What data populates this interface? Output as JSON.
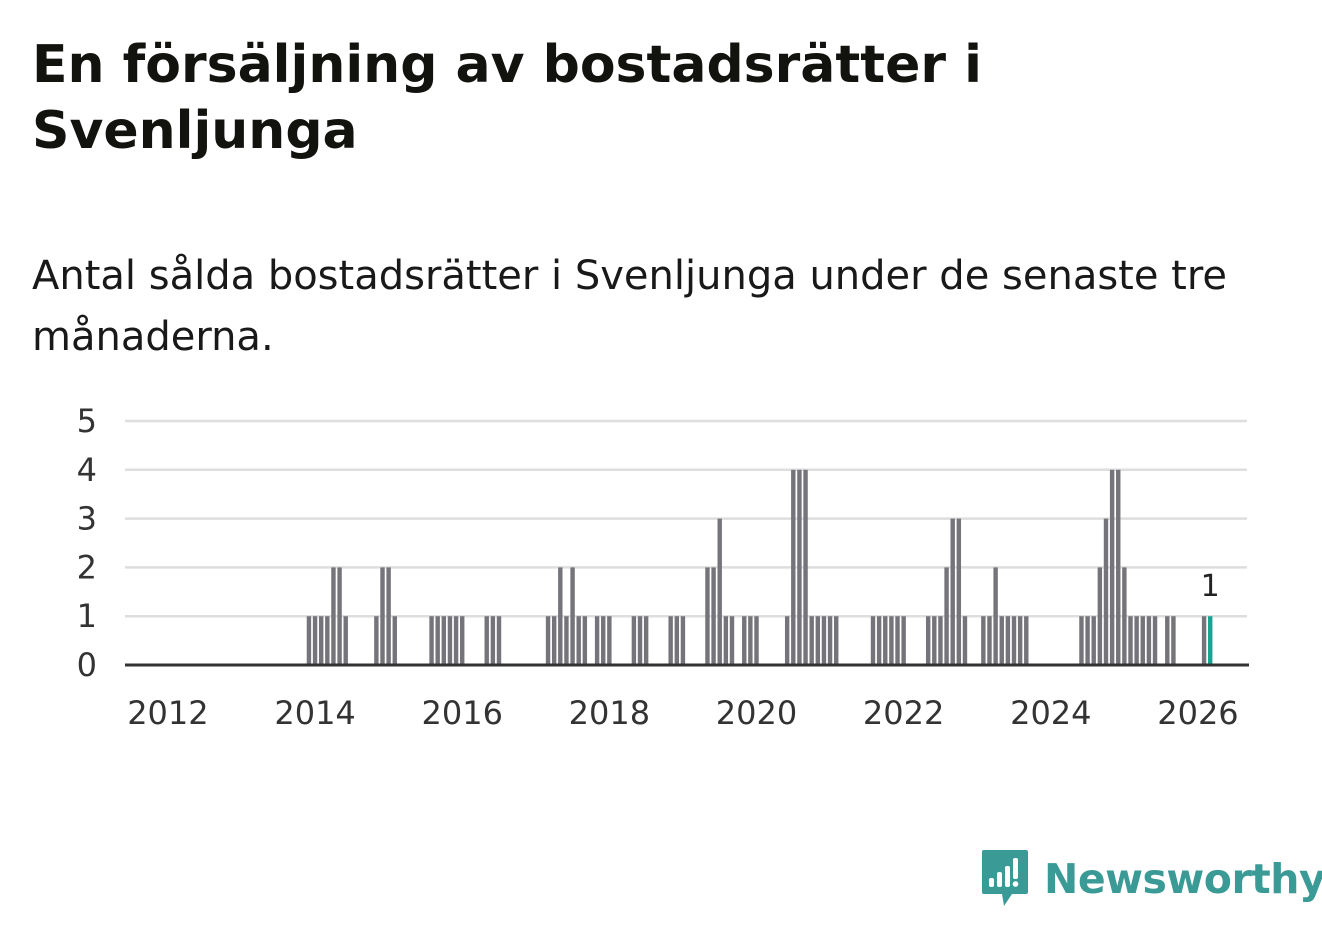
{
  "header": {
    "title": "En försäljning av bostadsrätter i Svenljunga",
    "subtitle": "Antal sålda bostadsrätter i Svenljunga under de senaste tre månaderna."
  },
  "brand": {
    "name": "Newsworthy",
    "color": "#3a9a96",
    "icon": "newsworthy-logo-icon"
  },
  "chart_data": {
    "type": "bar",
    "x_axis": {
      "type": "date",
      "range": [
        "2011-06",
        "2026-09"
      ],
      "ticks": [
        "2012",
        "2014",
        "2016",
        "2018",
        "2020",
        "2022",
        "2024",
        "2026"
      ]
    },
    "y_axis": {
      "range": [
        0,
        5
      ],
      "ticks": [
        "0",
        "1",
        "2",
        "3",
        "4",
        "5"
      ]
    },
    "grid": true,
    "bar_color": "#75747a",
    "highlight_color": "#1aa391",
    "highlight_label": "1",
    "series": [
      {
        "values": [
          [
            "2013-12",
            1
          ],
          [
            "2014-01",
            1
          ],
          [
            "2014-02",
            1
          ],
          [
            "2014-03",
            1
          ],
          [
            "2014-04",
            2
          ],
          [
            "2014-05",
            2
          ],
          [
            "2014-06",
            1
          ],
          [
            "2014-11",
            1
          ],
          [
            "2014-12",
            2
          ],
          [
            "2015-01",
            2
          ],
          [
            "2015-02",
            1
          ],
          [
            "2015-08",
            1
          ],
          [
            "2015-09",
            1
          ],
          [
            "2015-10",
            1
          ],
          [
            "2015-11",
            1
          ],
          [
            "2015-12",
            1
          ],
          [
            "2016-01",
            1
          ],
          [
            "2016-05",
            1
          ],
          [
            "2016-06",
            1
          ],
          [
            "2016-07",
            1
          ],
          [
            "2017-03",
            1
          ],
          [
            "2017-04",
            1
          ],
          [
            "2017-05",
            2
          ],
          [
            "2017-06",
            1
          ],
          [
            "2017-07",
            2
          ],
          [
            "2017-08",
            1
          ],
          [
            "2017-09",
            1
          ],
          [
            "2017-11",
            1
          ],
          [
            "2017-12",
            1
          ],
          [
            "2018-01",
            1
          ],
          [
            "2018-05",
            1
          ],
          [
            "2018-06",
            1
          ],
          [
            "2018-07",
            1
          ],
          [
            "2018-11",
            1
          ],
          [
            "2018-12",
            1
          ],
          [
            "2019-01",
            1
          ],
          [
            "2019-05",
            2
          ],
          [
            "2019-06",
            2
          ],
          [
            "2019-07",
            3
          ],
          [
            "2019-08",
            1
          ],
          [
            "2019-09",
            1
          ],
          [
            "2019-11",
            1
          ],
          [
            "2019-12",
            1
          ],
          [
            "2020-01",
            1
          ],
          [
            "2020-06",
            1
          ],
          [
            "2020-07",
            4
          ],
          [
            "2020-08",
            4
          ],
          [
            "2020-09",
            4
          ],
          [
            "2020-10",
            1
          ],
          [
            "2020-11",
            1
          ],
          [
            "2020-12",
            1
          ],
          [
            "2021-01",
            1
          ],
          [
            "2021-02",
            1
          ],
          [
            "2021-08",
            1
          ],
          [
            "2021-09",
            1
          ],
          [
            "2021-10",
            1
          ],
          [
            "2021-11",
            1
          ],
          [
            "2021-12",
            1
          ],
          [
            "2022-01",
            1
          ],
          [
            "2022-05",
            1
          ],
          [
            "2022-06",
            1
          ],
          [
            "2022-07",
            1
          ],
          [
            "2022-08",
            2
          ],
          [
            "2022-09",
            3
          ],
          [
            "2022-10",
            3
          ],
          [
            "2022-11",
            1
          ],
          [
            "2023-02",
            1
          ],
          [
            "2023-03",
            1
          ],
          [
            "2023-04",
            2
          ],
          [
            "2023-05",
            1
          ],
          [
            "2023-06",
            1
          ],
          [
            "2023-07",
            1
          ],
          [
            "2023-08",
            1
          ],
          [
            "2023-09",
            1
          ],
          [
            "2024-06",
            1
          ],
          [
            "2024-07",
            1
          ],
          [
            "2024-08",
            1
          ],
          [
            "2024-09",
            2
          ],
          [
            "2024-10",
            3
          ],
          [
            "2024-11",
            4
          ],
          [
            "2024-12",
            4
          ],
          [
            "2025-01",
            2
          ],
          [
            "2025-02",
            1
          ],
          [
            "2025-03",
            1
          ],
          [
            "2025-04",
            1
          ],
          [
            "2025-05",
            1
          ],
          [
            "2025-06",
            1
          ],
          [
            "2025-08",
            1
          ],
          [
            "2025-09",
            1
          ],
          [
            "2026-02",
            1
          ],
          [
            "2026-03",
            1
          ]
        ]
      }
    ]
  }
}
